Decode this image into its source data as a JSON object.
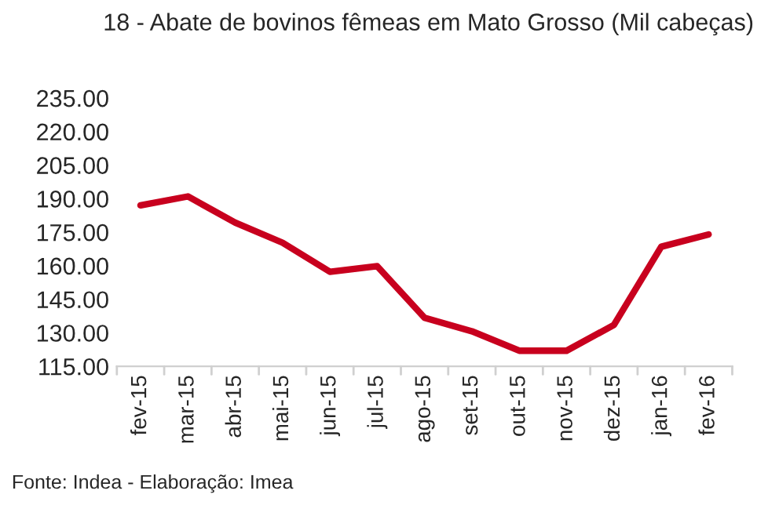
{
  "chart_data": {
    "type": "line",
    "title": "18 - Abate de bovinos fêmeas em Mato Grosso (Mil cabeças)",
    "categories": [
      "fev-15",
      "mar-15",
      "abr-15",
      "mai-15",
      "jun-15",
      "jul-15",
      "ago-15",
      "set-15",
      "out-15",
      "nov-15",
      "dez-15",
      "jan-16",
      "fev-16"
    ],
    "series": [
      {
        "color": "#c8001e",
        "values": [
          187,
          191,
          179.3,
          170.3,
          157.3,
          159.8,
          136.7,
          130.7,
          122,
          122,
          133.5,
          168.5,
          174
        ]
      }
    ],
    "ylim": [
      115,
      235
    ],
    "yticks": [
      {
        "value": 115,
        "label": "115.00"
      },
      {
        "value": 130,
        "label": "130.00"
      },
      {
        "value": 145,
        "label": "145.00"
      },
      {
        "value": 160,
        "label": "160.00"
      },
      {
        "value": 175,
        "label": "175.00"
      },
      {
        "value": 190,
        "label": "190.00"
      },
      {
        "value": 205,
        "label": "205.00"
      },
      {
        "value": 220,
        "label": "220.00"
      },
      {
        "value": 235,
        "label": "235.00"
      }
    ],
    "grid": false,
    "legend": false,
    "marker": "none",
    "line_style": "solid",
    "annotations": [
      "Fonte: Indea - Elaboração: Imea"
    ]
  }
}
